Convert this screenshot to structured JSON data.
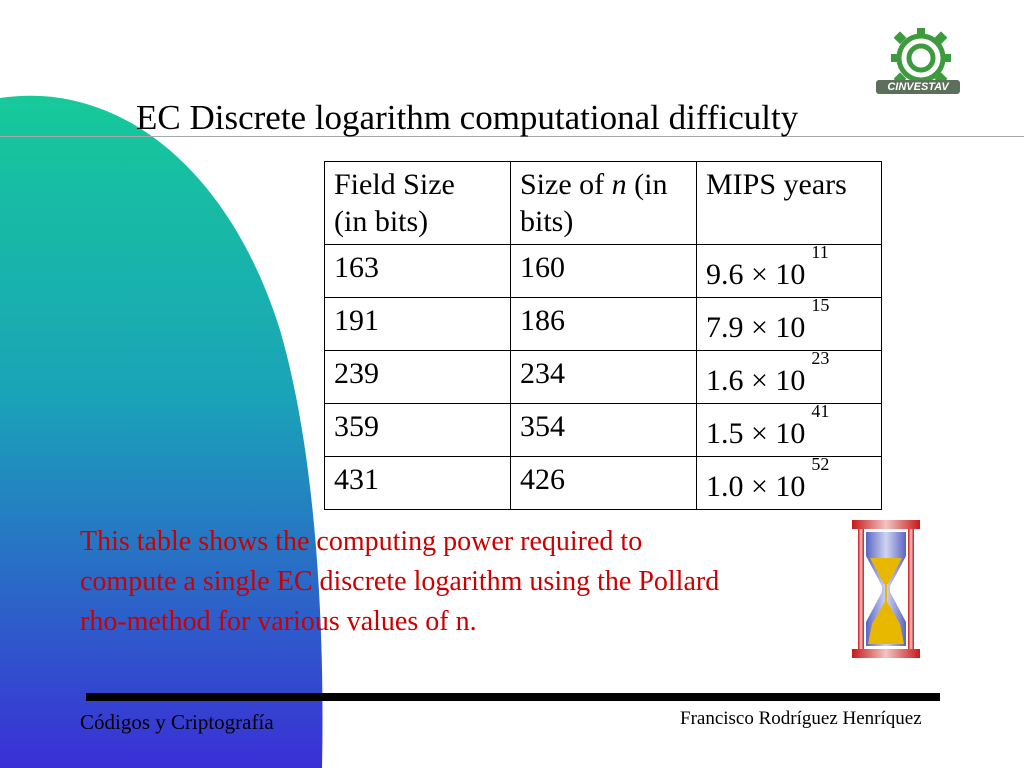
{
  "slide": {
    "title": "EC Discrete logarithm computational difficulty",
    "logo_text": "CINVESTAV",
    "table": {
      "headers": {
        "field_size_line1": "Field Size",
        "field_size_line2": "(in bits)",
        "n_size_prefix": "Size of ",
        "n_size_var": "n",
        "n_size_suffix": " (in",
        "n_size_line2": "bits)",
        "mips": "MIPS years"
      },
      "rows": [
        {
          "field": "163",
          "n": "160",
          "mips": "9.6 × 10",
          "exp": "11"
        },
        {
          "field": "191",
          "n": "186",
          "mips": "7.9 × 10",
          "exp": "15"
        },
        {
          "field": "239",
          "n": "234",
          "mips": "1.6 × 10",
          "exp": "23"
        },
        {
          "field": "359",
          "n": "354",
          "mips": "1.5 × 10",
          "exp": "41"
        },
        {
          "field": "431",
          "n": "426",
          "mips": "1.0 × 10",
          "exp": "52"
        }
      ]
    },
    "caption": {
      "line1": "This table  shows the computing power required to",
      "line2": "compute a single EC discrete logarithm using the Pollard",
      "line3": "rho-method for various values of n."
    },
    "footer": {
      "left": "Códigos y Criptografía",
      "right": "Francisco Rodríguez Henríquez"
    },
    "colors": {
      "caption": "#cc0000",
      "gradient_top": "#16c99a",
      "gradient_bottom": "#3a2fd6"
    }
  }
}
